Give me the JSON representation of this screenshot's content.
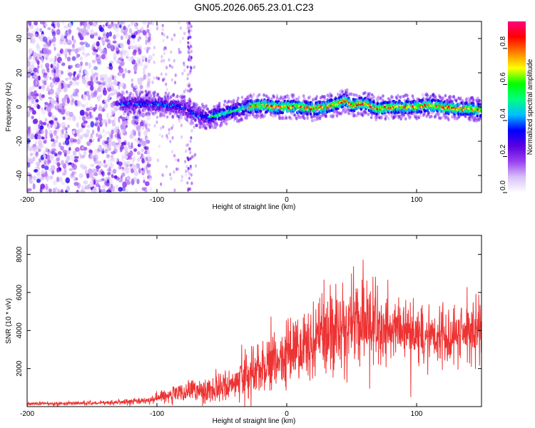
{
  "figure_title": "GN05.2026.065.23.01.C23",
  "chart_data": [
    {
      "type": "heatmap",
      "title": "GN05.2026.065.23.01.C23",
      "xlabel": "Height of straight line (km)",
      "ylabel": "Frequency (Hz)",
      "xlim": [
        -200,
        150
      ],
      "ylim": [
        -50,
        50
      ],
      "xticks": [
        -200,
        -100,
        0,
        100
      ],
      "yticks": [
        -40,
        -20,
        0,
        20,
        40
      ],
      "colorbar": {
        "label": "Normalized spectral amplitude",
        "range": [
          0,
          0.95
        ],
        "ticks": [
          0.0,
          0.2,
          0.4,
          0.6,
          0.8
        ],
        "colormap": [
          "#ffffff",
          "#d8c0f8",
          "#9a40f0",
          "#5a00e0",
          "#0000ff",
          "#00bfff",
          "#00ff80",
          "#00ff00",
          "#ffff00",
          "#ff8000",
          "#ff0000",
          "#ff0080"
        ]
      },
      "ridge_center_hz": {
        "x": [
          -125,
          -110,
          -90,
          -80,
          -70,
          -60,
          -50,
          -40,
          -30,
          -20,
          -10,
          0,
          10,
          20,
          30,
          40,
          45,
          50,
          60,
          70,
          80,
          90,
          100,
          110,
          120,
          130,
          140,
          150
        ],
        "y": [
          2,
          2,
          1,
          0,
          -5,
          -6,
          -4,
          -2,
          0,
          1,
          0,
          0,
          0,
          -1,
          0,
          2,
          4,
          1,
          2,
          -1,
          0,
          0,
          0,
          1,
          0,
          -1,
          -1,
          -2
        ]
      }
    },
    {
      "type": "line",
      "xlabel": "Height of straight line (km)",
      "ylabel": "SNR (10 * v/v)",
      "xlim": [
        -200,
        150
      ],
      "ylim": [
        0,
        9000
      ],
      "xticks": [
        -200,
        -100,
        0,
        100
      ],
      "yticks": [
        2000,
        4000,
        6000,
        8000
      ],
      "color": "#ee3333",
      "envelope": {
        "x": [
          -200,
          -150,
          -130,
          -110,
          -100,
          -90,
          -80,
          -70,
          -60,
          -50,
          -40,
          -30,
          -20,
          -10,
          0,
          10,
          20,
          30,
          40,
          50,
          60,
          70,
          80,
          90,
          100,
          110,
          120,
          130,
          140,
          150
        ],
        "mean": [
          150,
          180,
          230,
          300,
          450,
          600,
          700,
          800,
          900,
          1000,
          1300,
          1700,
          2100,
          2400,
          2700,
          3100,
          3400,
          3800,
          4200,
          4500,
          4400,
          4200,
          4000,
          3900,
          3800,
          3800,
          3700,
          3800,
          3800,
          4000
        ],
        "amplitude": [
          120,
          130,
          160,
          250,
          400,
          600,
          700,
          800,
          900,
          1000,
          1300,
          1600,
          1800,
          2000,
          2200,
          2400,
          2700,
          2900,
          3300,
          3500,
          3200,
          2700,
          2300,
          2100,
          2000,
          1900,
          1900,
          2000,
          2000,
          2100
        ]
      }
    }
  ]
}
